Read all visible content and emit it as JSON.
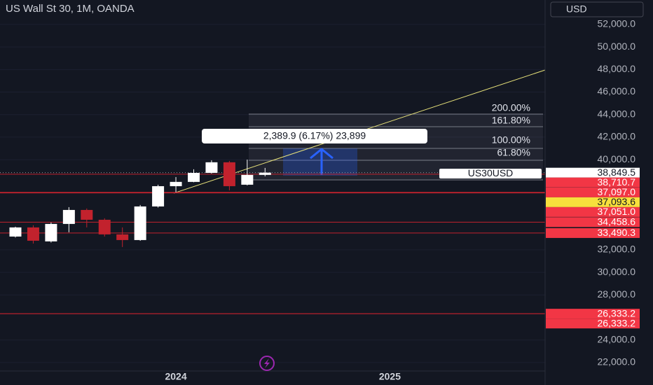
{
  "chart_data": {
    "type": "candlestick",
    "title": "US Wall St 30, 1M, OANDA",
    "currency": "USD",
    "categories": [
      null,
      null,
      null,
      null,
      null,
      null,
      null,
      null,
      null,
      "2024",
      null,
      null,
      null,
      null,
      null,
      null,
      null,
      null,
      null,
      null,
      null,
      "2025"
    ],
    "open": [
      33180,
      33990,
      32750,
      34300,
      35540,
      34670,
      33370,
      32870,
      35850,
      37650,
      38030,
      38830,
      39770,
      37780,
      38650,
      null,
      null,
      null,
      null,
      null,
      null,
      null
    ],
    "high": [
      34050,
      34180,
      34430,
      35790,
      35670,
      34800,
      33990,
      35980,
      37780,
      38460,
      39150,
      39950,
      39890,
      40010,
      39270,
      null,
      null,
      null,
      null,
      null,
      null,
      null
    ],
    "low": [
      33100,
      32560,
      32650,
      33560,
      33990,
      33180,
      32250,
      32800,
      35750,
      37100,
      38000,
      38770,
      37280,
      37720,
      38520,
      null,
      null,
      null,
      null,
      null,
      null,
      null
    ],
    "close": [
      33990,
      32810,
      34300,
      35540,
      34670,
      33370,
      32870,
      35850,
      37650,
      38030,
      38830,
      39770,
      37650,
      38650,
      38849.5,
      null,
      null,
      null,
      null,
      null,
      null,
      null
    ],
    "up_color": "#ffffff",
    "down_color": "#c2222d",
    "ylim": [
      21250,
      54170
    ],
    "yticks": [
      {
        "value": 22000,
        "label": "22,000.0"
      },
      {
        "value": 24000,
        "label": "24,000.0"
      },
      {
        "value": 28000,
        "label": "28,000.0"
      },
      {
        "value": 30000,
        "label": "30,000.0"
      },
      {
        "value": 32000,
        "label": "32,000.0"
      },
      {
        "value": 40000,
        "label": "40,000.0"
      },
      {
        "value": 42000,
        "label": "42,000.0"
      },
      {
        "value": 44000,
        "label": "44,000.0"
      },
      {
        "value": 46000,
        "label": "46,000.0"
      },
      {
        "value": 48000,
        "label": "48,000.0"
      },
      {
        "value": 50000,
        "label": "50,000.0"
      },
      {
        "value": 52000,
        "label": "52,000.0"
      }
    ],
    "last_price": {
      "value": 38849.5,
      "label": "38,849.5",
      "symbol": "US30USD"
    },
    "price_lines": [
      {
        "value": 38710.7,
        "label": "38,710.7",
        "color": "#f23645"
      },
      {
        "value": 37097.0,
        "label": "37,097.0",
        "color": "#f23645"
      },
      {
        "value": 37093.6,
        "label": "37,093.6",
        "color": "#f7e03c"
      },
      {
        "value": 37051.0,
        "label": "37,051.0",
        "color": "#f23645"
      },
      {
        "value": 34458.6,
        "label": "34,458.6",
        "color": "#f23645"
      },
      {
        "value": 33490.3,
        "label": "33,490.3",
        "color": "#f23645"
      },
      {
        "value": 26333.2,
        "label": "26,333.2",
        "color": "#f23645"
      },
      {
        "value": 26333.2,
        "label": "26,333.2",
        "color": "#f23645"
      }
    ],
    "measure_label": "2,389.9 (6.17%) 23,899",
    "fib_labels": [
      "200.00%",
      "161.80%",
      "100.00%",
      "61.80%"
    ]
  }
}
